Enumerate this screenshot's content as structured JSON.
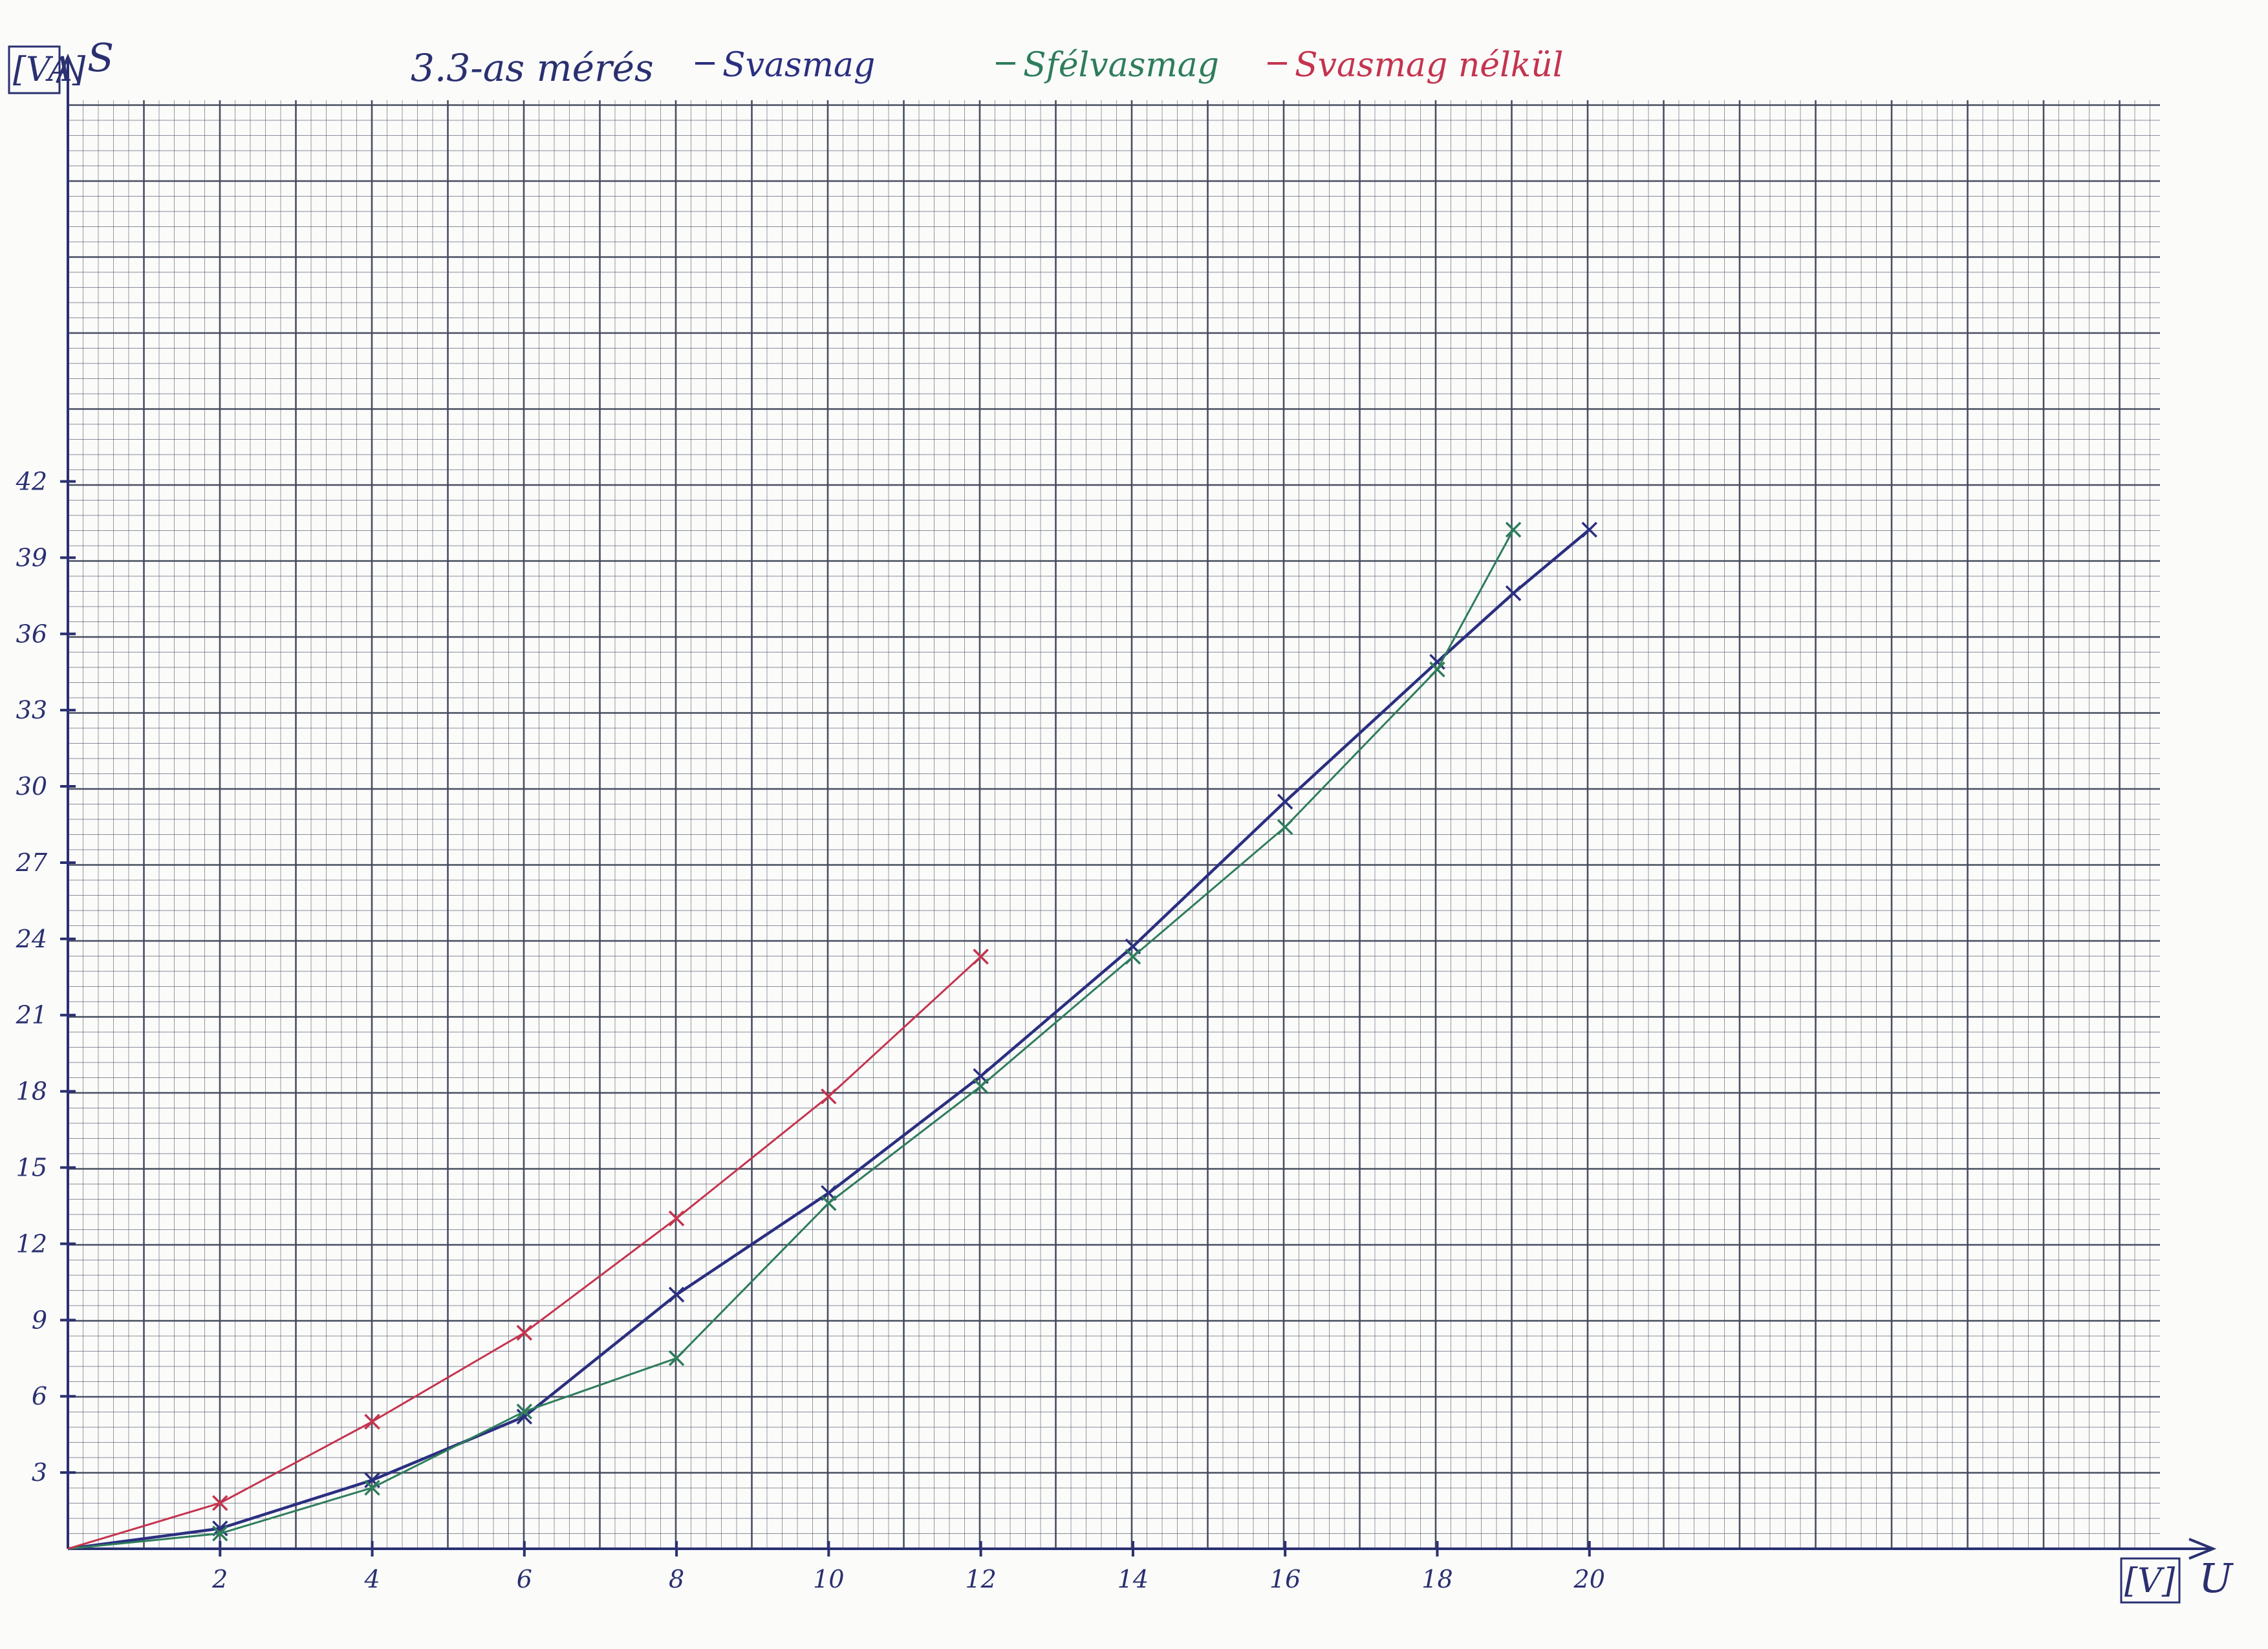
{
  "chart_data": {
    "type": "line",
    "title": "3.3-as mérés",
    "xlabel": "U",
    "xunit": "[V]",
    "ylabel": "S",
    "yunit": "[VA]",
    "xlim": [
      0,
      27.5
    ],
    "ylim": [
      0,
      57
    ],
    "x_ticks": [
      2,
      4,
      6,
      8,
      10,
      12,
      14,
      16,
      18,
      20
    ],
    "y_ticks": [
      3,
      6,
      9,
      12,
      15,
      18,
      21,
      24,
      27,
      30,
      33,
      36,
      39,
      42
    ],
    "grid": true,
    "legend_position": "top",
    "series": [
      {
        "name": "Svasmag",
        "color": "#2b2f80",
        "x": [
          0,
          2,
          4,
          6,
          8,
          10,
          12,
          14,
          16,
          18,
          19,
          20
        ],
        "y": [
          0,
          0.8,
          2.7,
          5.2,
          10.0,
          14.0,
          18.6,
          23.7,
          29.4,
          34.9,
          37.6,
          40.1
        ]
      },
      {
        "name": "Sfélvasmag",
        "color": "#2e7d5b",
        "x": [
          0,
          2,
          4,
          6,
          8,
          10,
          12,
          14,
          16,
          18,
          19
        ],
        "y": [
          0,
          0.6,
          2.4,
          5.4,
          7.5,
          13.6,
          18.2,
          23.3,
          28.4,
          34.6,
          40.1
        ]
      },
      {
        "name": "Svasmag nélkül",
        "color": "#c4344e",
        "x": [
          0,
          2,
          4,
          6,
          8,
          10,
          12
        ],
        "y": [
          0,
          1.8,
          5.0,
          8.5,
          13.0,
          17.8,
          23.3
        ]
      }
    ]
  },
  "colors": {
    "paper": "#fbfbfa",
    "grid": "#40465a",
    "axis": "#2a3070"
  }
}
